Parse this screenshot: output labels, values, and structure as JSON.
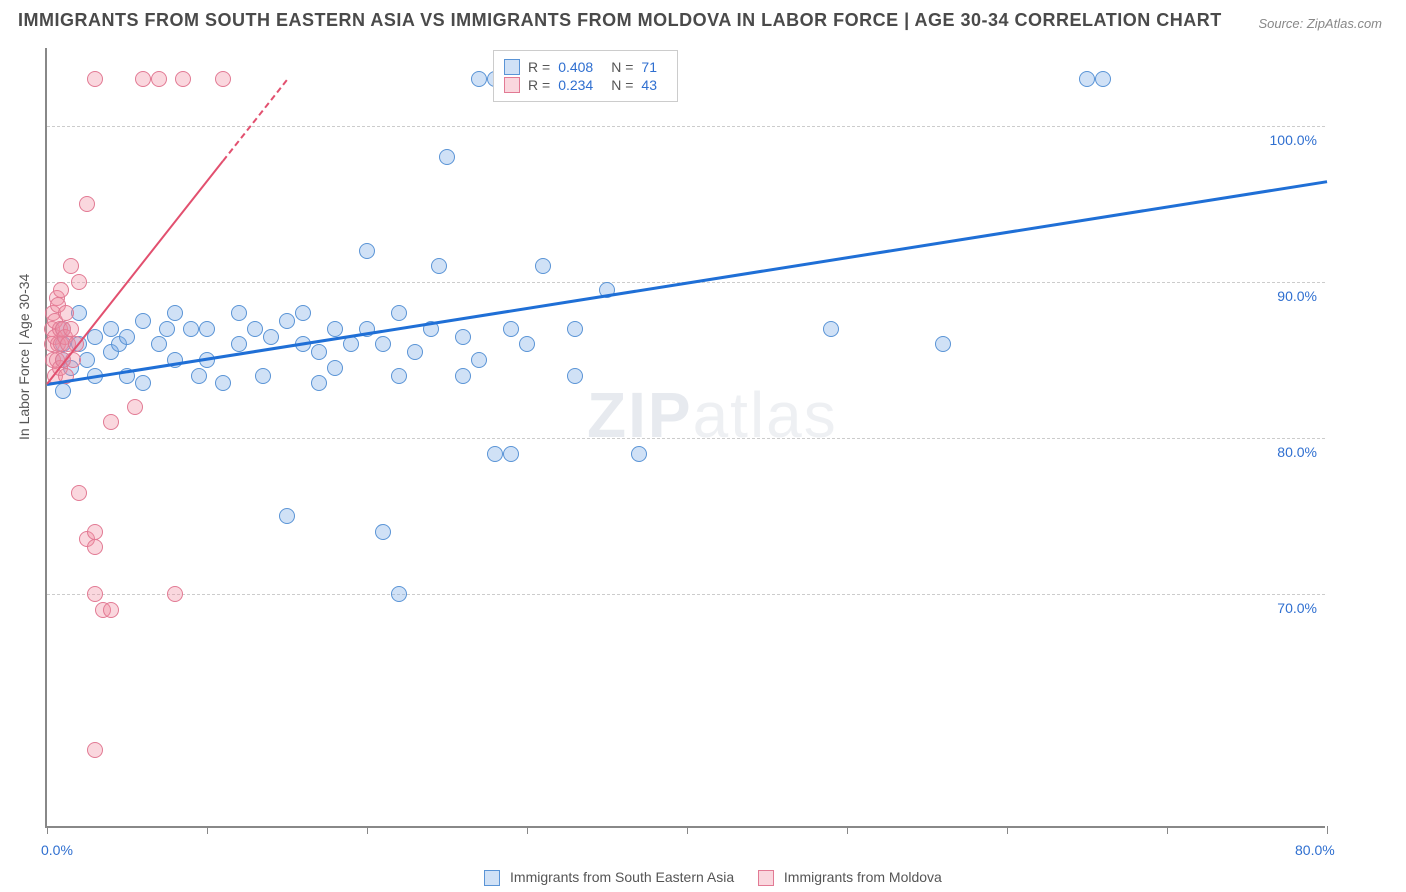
{
  "title": "IMMIGRANTS FROM SOUTH EASTERN ASIA VS IMMIGRANTS FROM MOLDOVA IN LABOR FORCE | AGE 30-34 CORRELATION CHART",
  "source": "Source: ZipAtlas.com",
  "y_axis_label": "In Labor Force | Age 30-34",
  "watermark": {
    "bold": "ZIP",
    "light": "atlas"
  },
  "chart": {
    "type": "scatter",
    "background_color": "#ffffff",
    "grid_color": "#cccccc",
    "axis_color": "#888888",
    "xlim": [
      0,
      80
    ],
    "ylim": [
      55,
      105
    ],
    "x_ticks": [
      0,
      10,
      20,
      30,
      40,
      50,
      60,
      70,
      80
    ],
    "x_tick_labels": {
      "0": "0.0%",
      "80": "80.0%"
    },
    "y_gridlines": [
      70,
      80,
      90,
      100
    ],
    "y_tick_labels": {
      "70": "70.0%",
      "80": "80.0%",
      "90": "90.0%",
      "100": "100.0%"
    },
    "marker_radius": 8,
    "marker_stroke_width": 1.5,
    "series": [
      {
        "id": "se_asia",
        "label": "Immigrants from South Eastern Asia",
        "fill": "rgba(120,170,230,0.35)",
        "stroke": "#5a94d6",
        "R": "0.408",
        "N": "71",
        "trend": {
          "x1": 0,
          "y1": 83.5,
          "x2": 80,
          "y2": 96.5,
          "color": "#1f6fd6",
          "width": 3,
          "dash": "solid"
        },
        "points": [
          [
            1,
            83
          ],
          [
            1,
            85
          ],
          [
            1,
            86
          ],
          [
            1,
            87
          ],
          [
            1.5,
            84.5
          ],
          [
            2,
            86
          ],
          [
            2,
            88
          ],
          [
            2.5,
            85
          ],
          [
            3,
            84
          ],
          [
            3,
            86.5
          ],
          [
            4,
            87
          ],
          [
            4,
            85.5
          ],
          [
            4.5,
            86
          ],
          [
            5,
            84
          ],
          [
            5,
            86.5
          ],
          [
            6,
            87.5
          ],
          [
            6,
            83.5
          ],
          [
            7,
            86
          ],
          [
            7.5,
            87
          ],
          [
            8,
            88
          ],
          [
            8,
            85
          ],
          [
            9,
            87
          ],
          [
            9.5,
            84
          ],
          [
            10,
            85
          ],
          [
            10,
            87
          ],
          [
            11,
            83.5
          ],
          [
            12,
            86
          ],
          [
            12,
            88
          ],
          [
            13,
            87
          ],
          [
            13.5,
            84
          ],
          [
            14,
            86.5
          ],
          [
            15,
            87.5
          ],
          [
            15,
            75
          ],
          [
            16,
            86
          ],
          [
            16,
            88
          ],
          [
            17,
            85.5
          ],
          [
            17,
            83.5
          ],
          [
            18,
            87
          ],
          [
            18,
            84.5
          ],
          [
            19,
            86
          ],
          [
            20,
            92
          ],
          [
            20,
            87
          ],
          [
            21,
            74
          ],
          [
            21,
            86
          ],
          [
            22,
            88
          ],
          [
            22,
            84
          ],
          [
            22,
            70
          ],
          [
            23,
            85.5
          ],
          [
            24,
            87
          ],
          [
            24.5,
            91
          ],
          [
            25,
            98
          ],
          [
            26,
            86.5
          ],
          [
            26,
            84
          ],
          [
            27,
            85
          ],
          [
            27,
            103
          ],
          [
            28,
            103
          ],
          [
            28,
            79
          ],
          [
            29,
            79
          ],
          [
            29,
            87
          ],
          [
            30,
            86
          ],
          [
            31,
            91
          ],
          [
            32,
            103
          ],
          [
            33,
            87
          ],
          [
            33,
            84
          ],
          [
            35,
            89.5
          ],
          [
            36,
            103
          ],
          [
            37,
            79
          ],
          [
            49,
            87
          ],
          [
            56,
            86
          ],
          [
            65,
            103
          ],
          [
            66,
            103
          ]
        ]
      },
      {
        "id": "moldova",
        "label": "Immigrants from Moldova",
        "fill": "rgba(240,140,160,0.35)",
        "stroke": "#e27a94",
        "R": "0.234",
        "N": "43",
        "trend": {
          "x1": 0,
          "y1": 83.5,
          "x2": 15,
          "y2": 103,
          "color": "#e2506f",
          "width": 2,
          "dash_solid_to": 11,
          "dash": "dashed"
        },
        "points": [
          [
            0.3,
            86
          ],
          [
            0.3,
            87
          ],
          [
            0.4,
            85
          ],
          [
            0.4,
            88
          ],
          [
            0.5,
            84
          ],
          [
            0.5,
            86.5
          ],
          [
            0.5,
            87.5
          ],
          [
            0.6,
            89
          ],
          [
            0.6,
            85
          ],
          [
            0.7,
            86
          ],
          [
            0.7,
            88.5
          ],
          [
            0.8,
            87
          ],
          [
            0.8,
            84.5
          ],
          [
            0.9,
            86
          ],
          [
            0.9,
            89.5
          ],
          [
            1.0,
            87
          ],
          [
            1.0,
            85
          ],
          [
            1.1,
            86.5
          ],
          [
            1.2,
            88
          ],
          [
            1.2,
            84
          ],
          [
            1.3,
            86
          ],
          [
            1.5,
            91
          ],
          [
            1.5,
            87
          ],
          [
            1.6,
            85
          ],
          [
            1.8,
            86
          ],
          [
            2.0,
            90
          ],
          [
            2,
            76.5
          ],
          [
            2.5,
            73.5
          ],
          [
            2.5,
            95
          ],
          [
            3,
            103
          ],
          [
            3,
            73
          ],
          [
            3,
            70
          ],
          [
            3.5,
            69
          ],
          [
            4,
            81
          ],
          [
            4,
            69
          ],
          [
            5.5,
            82
          ],
          [
            6,
            103
          ],
          [
            7,
            103
          ],
          [
            8,
            70
          ],
          [
            8.5,
            103
          ],
          [
            11,
            103
          ],
          [
            3,
            60
          ],
          [
            3,
            74
          ]
        ]
      }
    ]
  },
  "stats_legend": {
    "r_label": "R =",
    "n_label": "N ="
  }
}
